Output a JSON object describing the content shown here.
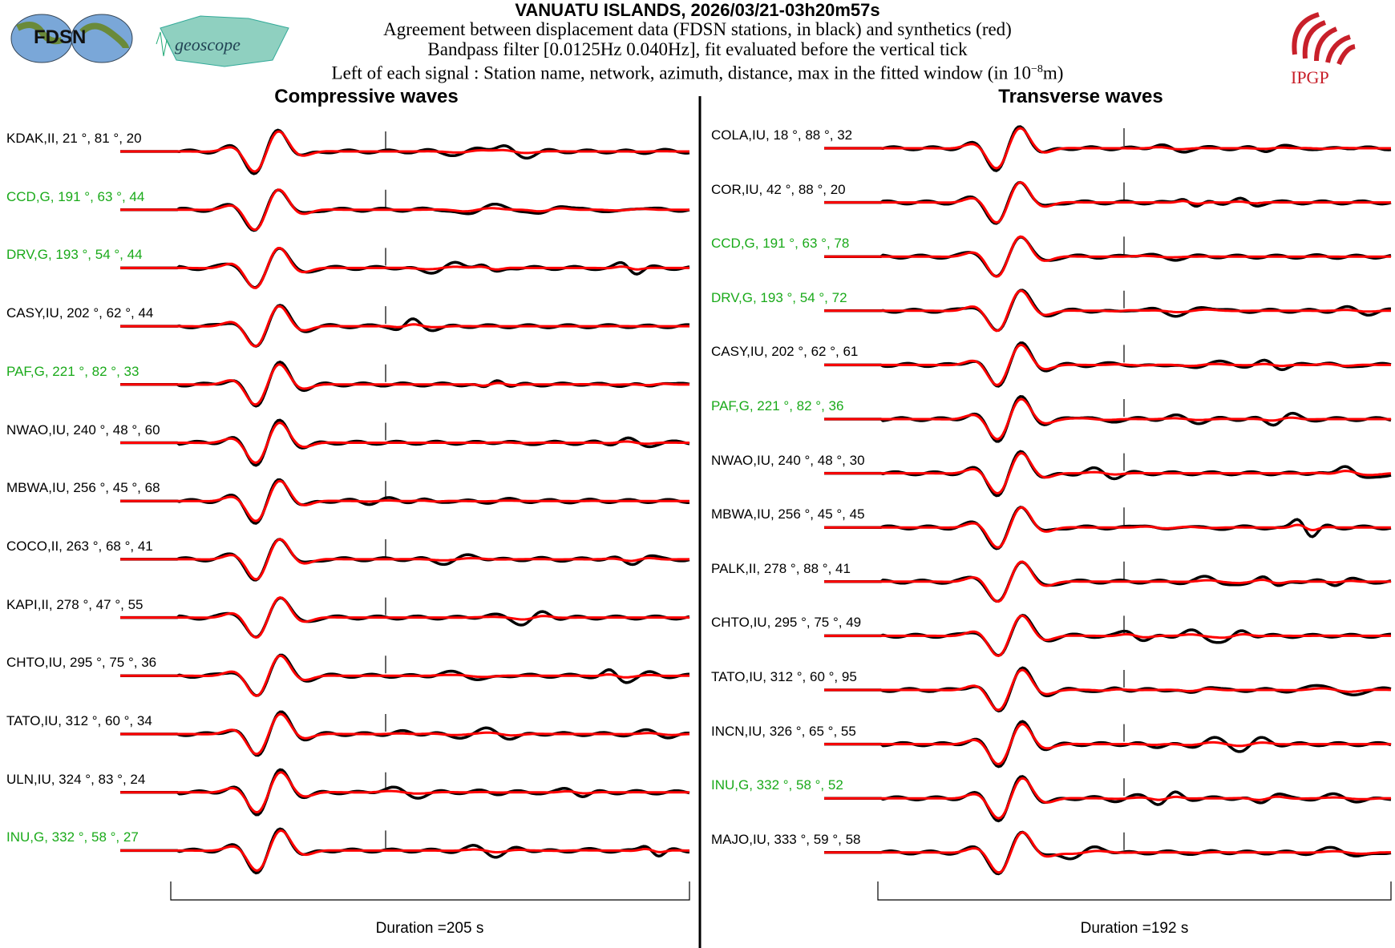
{
  "header": {
    "title": "VANUATU ISLANDS, 2026/03/21-03h20m57s",
    "line1": "Agreement between displacement data (FDSN stations, in black) and synthetics (red)",
    "line2": "Bandpass filter [0.0125Hz 0.040Hz], fit evaluated before the vertical tick",
    "line3_prefix": "Left of each signal : Station name, network, azimuth, distance, max in the fitted window (in 10",
    "line3_exp": "−8",
    "line3_suffix": "m)"
  },
  "logos": {
    "fdsn": "FDSN",
    "geoscope": "geoscope",
    "ipgp": "IPGP"
  },
  "colors": {
    "data": "#000000",
    "synthetic": "#ff0000",
    "geoscope_label": "#1aaa1a",
    "other_label": "#000000"
  },
  "chart_data": [
    {
      "type": "line",
      "title": "Compressive waves",
      "duration_label": "Duration =205 s",
      "duration_s": 205,
      "series_colors": {
        "data": "black",
        "synthetics": "red"
      },
      "stations": [
        {
          "label": "KDAK,II, 21 °, 81 °, 20",
          "name": "KDAK",
          "network": "II",
          "azimuth": 21,
          "distance": 81,
          "max": 20,
          "geoscope": false
        },
        {
          "label": "CCD,G, 191 °, 63 °, 44",
          "name": "CCD",
          "network": "G",
          "azimuth": 191,
          "distance": 63,
          "max": 44,
          "geoscope": true
        },
        {
          "label": "DRV,G, 193 °, 54 °, 44",
          "name": "DRV",
          "network": "G",
          "azimuth": 193,
          "distance": 54,
          "max": 44,
          "geoscope": true
        },
        {
          "label": "CASY,IU, 202 °, 62 °, 44",
          "name": "CASY",
          "network": "IU",
          "azimuth": 202,
          "distance": 62,
          "max": 44,
          "geoscope": false
        },
        {
          "label": "PAF,G, 221 °, 82 °, 33",
          "name": "PAF",
          "network": "G",
          "azimuth": 221,
          "distance": 82,
          "max": 33,
          "geoscope": true
        },
        {
          "label": "NWAO,IU, 240 °, 48 °, 60",
          "name": "NWAO",
          "network": "IU",
          "azimuth": 240,
          "distance": 48,
          "max": 60,
          "geoscope": false
        },
        {
          "label": "MBWA,IU, 256 °, 45 °, 68",
          "name": "MBWA",
          "network": "IU",
          "azimuth": 256,
          "distance": 45,
          "max": 68,
          "geoscope": false
        },
        {
          "label": "COCO,II, 263 °, 68 °, 41",
          "name": "COCO",
          "network": "II",
          "azimuth": 263,
          "distance": 68,
          "max": 41,
          "geoscope": false
        },
        {
          "label": "KAPI,II, 278 °, 47 °, 55",
          "name": "KAPI",
          "network": "II",
          "azimuth": 278,
          "distance": 47,
          "max": 55,
          "geoscope": false
        },
        {
          "label": "CHTO,IU, 295 °, 75 °, 36",
          "name": "CHTO",
          "network": "IU",
          "azimuth": 295,
          "distance": 75,
          "max": 36,
          "geoscope": false
        },
        {
          "label": "TATO,IU, 312 °, 60 °, 34",
          "name": "TATO",
          "network": "IU",
          "azimuth": 312,
          "distance": 60,
          "max": 34,
          "geoscope": false
        },
        {
          "label": "ULN,IU, 324 °, 83 °, 24",
          "name": "ULN",
          "network": "IU",
          "azimuth": 324,
          "distance": 83,
          "max": 24,
          "geoscope": false
        },
        {
          "label": "INU,G, 332 °, 58 °, 27",
          "name": "INU",
          "network": "G",
          "azimuth": 332,
          "distance": 58,
          "max": 27,
          "geoscope": true
        }
      ]
    },
    {
      "type": "line",
      "title": "Transverse waves",
      "duration_label": "Duration =192 s",
      "duration_s": 192,
      "series_colors": {
        "data": "black",
        "synthetics": "red"
      },
      "stations": [
        {
          "label": "COLA,IU, 18 °, 88 °, 32",
          "name": "COLA",
          "network": "IU",
          "azimuth": 18,
          "distance": 88,
          "max": 32,
          "geoscope": false
        },
        {
          "label": "COR,IU, 42 °, 88 °, 20",
          "name": "COR",
          "network": "IU",
          "azimuth": 42,
          "distance": 88,
          "max": 20,
          "geoscope": false
        },
        {
          "label": "CCD,G, 191 °, 63 °, 78",
          "name": "CCD",
          "network": "G",
          "azimuth": 191,
          "distance": 63,
          "max": 78,
          "geoscope": true
        },
        {
          "label": "DRV,G, 193 °, 54 °, 72",
          "name": "DRV",
          "network": "G",
          "azimuth": 193,
          "distance": 54,
          "max": 72,
          "geoscope": true
        },
        {
          "label": "CASY,IU, 202 °, 62 °, 61",
          "name": "CASY",
          "network": "IU",
          "azimuth": 202,
          "distance": 62,
          "max": 61,
          "geoscope": false
        },
        {
          "label": "PAF,G, 221 °, 82 °, 36",
          "name": "PAF",
          "network": "G",
          "azimuth": 221,
          "distance": 82,
          "max": 36,
          "geoscope": true
        },
        {
          "label": "NWAO,IU, 240 °, 48 °, 30",
          "name": "NWAO",
          "network": "IU",
          "azimuth": 240,
          "distance": 48,
          "max": 30,
          "geoscope": false
        },
        {
          "label": "MBWA,IU, 256 °, 45 °, 45",
          "name": "MBWA",
          "network": "IU",
          "azimuth": 256,
          "distance": 45,
          "max": 45,
          "geoscope": false
        },
        {
          "label": "PALK,II, 278 °, 88 °, 41",
          "name": "PALK",
          "network": "II",
          "azimuth": 278,
          "distance": 88,
          "max": 41,
          "geoscope": false
        },
        {
          "label": "CHTO,IU, 295 °, 75 °, 49",
          "name": "CHTO",
          "network": "IU",
          "azimuth": 295,
          "distance": 75,
          "max": 49,
          "geoscope": false
        },
        {
          "label": "TATO,IU, 312 °, 60 °, 95",
          "name": "TATO",
          "network": "IU",
          "azimuth": 312,
          "distance": 60,
          "max": 95,
          "geoscope": false
        },
        {
          "label": "INCN,IU, 326 °, 65 °, 55",
          "name": "INCN",
          "network": "IU",
          "azimuth": 326,
          "distance": 65,
          "max": 55,
          "geoscope": false
        },
        {
          "label": "INU,G, 332 °, 58 °, 52",
          "name": "INU",
          "network": "G",
          "azimuth": 332,
          "distance": 58,
          "max": 52,
          "geoscope": true
        },
        {
          "label": "MAJO,IU, 333 °, 59 °, 58",
          "name": "MAJO",
          "network": "IU",
          "azimuth": 333,
          "distance": 59,
          "max": 58,
          "geoscope": false
        }
      ]
    }
  ]
}
